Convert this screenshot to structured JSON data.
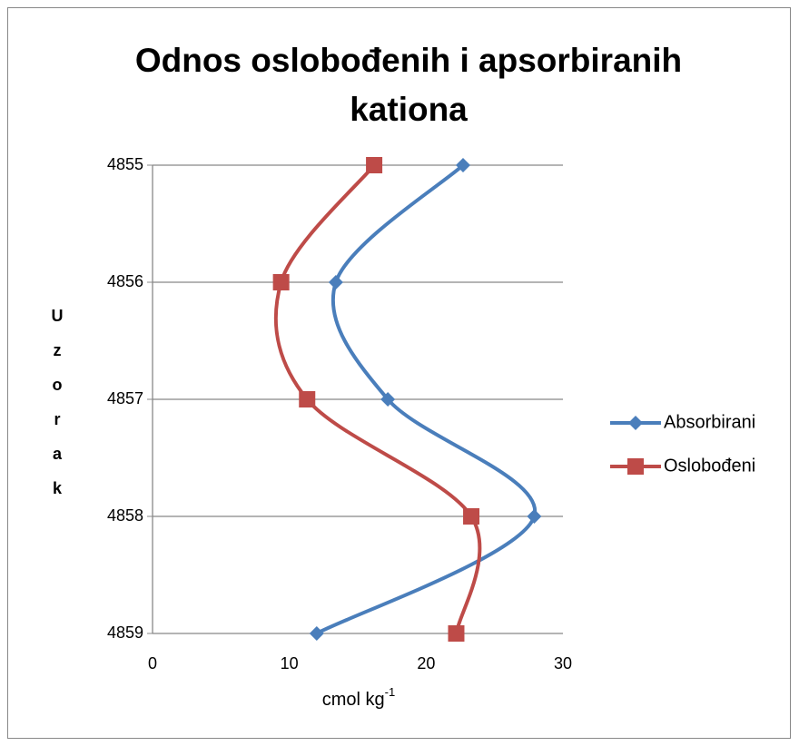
{
  "chart_data": {
    "type": "line",
    "title": "Odnos oslobođenih i apsorbiranih kationa",
    "xlabel": {
      "text": "cmol kg",
      "superscript": "-1"
    },
    "ylabel": "Uzorak",
    "categories": [
      "4855",
      "4856",
      "4857",
      "4858",
      "4859"
    ],
    "series": [
      {
        "name": "Absorbirani",
        "color": "#4a7ebb",
        "marker": "diamond",
        "values": [
          22.7,
          13.4,
          17.2,
          27.9,
          12.0
        ]
      },
      {
        "name": "Oslobođeni",
        "color": "#be4b48",
        "marker": "square",
        "values": [
          16.2,
          9.4,
          11.3,
          23.3,
          22.2
        ]
      }
    ],
    "xlim": [
      0,
      30
    ],
    "xticks": [
      0,
      10,
      20,
      30
    ],
    "smooth": true,
    "grid": true,
    "legend": "right"
  }
}
